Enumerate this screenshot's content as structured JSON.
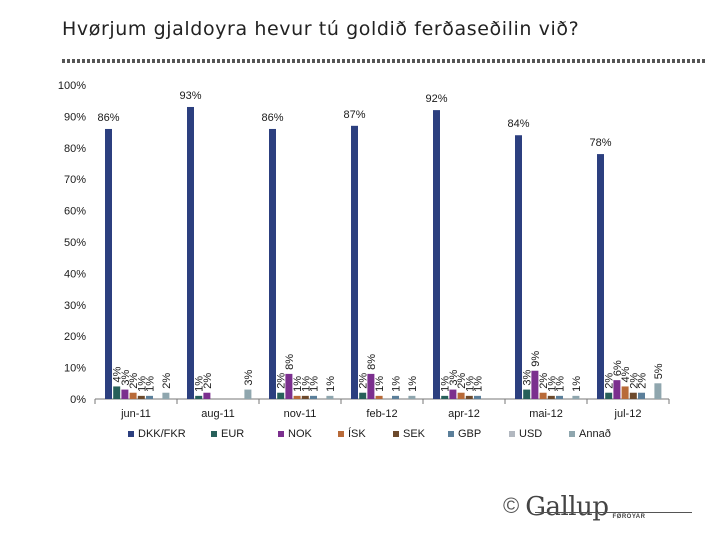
{
  "chart_data": {
    "type": "bar",
    "title": "Hvørjum gjaldoyra hevur tú goldið ferðaseðilin við?",
    "xlabel": "",
    "ylabel": "",
    "ylim": [
      0,
      100
    ],
    "y_ticks": [
      "0%",
      "10%",
      "20%",
      "30%",
      "40%",
      "50%",
      "60%",
      "70%",
      "80%",
      "90%",
      "100%"
    ],
    "categories": [
      "jun-11",
      "aug-11",
      "nov-11",
      "feb-12",
      "apr-12",
      "mai-12",
      "jul-12"
    ],
    "series": [
      {
        "name": "DKK/FKR",
        "color": "#2c3f7f",
        "values": [
          86,
          93,
          86,
          87,
          92,
          84,
          78
        ],
        "labels": [
          "86%",
          "93%",
          "86%",
          "87%",
          "92%",
          "84%",
          "78%"
        ]
      },
      {
        "name": "EUR",
        "color": "#27605a",
        "values": [
          4,
          1,
          2,
          2,
          1,
          3,
          2
        ],
        "labels": [
          "4%",
          "1%",
          "2%",
          "2%",
          "1%",
          "3%",
          "2%"
        ]
      },
      {
        "name": "NOK",
        "color": "#7b2f8e",
        "values": [
          3,
          2,
          8,
          8,
          3,
          9,
          6
        ],
        "labels": [
          "3%",
          "2%",
          "8%",
          "8%",
          "3%",
          "9%",
          "6%"
        ]
      },
      {
        "name": "ÍSK",
        "color": "#b86a38",
        "values": [
          2,
          0,
          1,
          1,
          2,
          2,
          4
        ],
        "labels": [
          "2%",
          "",
          "1%",
          "1%",
          "2%",
          "2%",
          "4%"
        ]
      },
      {
        "name": "SEK",
        "color": "#6d4a2c",
        "values": [
          1,
          0,
          1,
          0,
          1,
          1,
          2
        ],
        "labels": [
          "1%",
          "",
          "1%",
          "",
          "1%",
          "1%",
          "2%"
        ]
      },
      {
        "name": "GBP",
        "color": "#5b7f9a",
        "values": [
          1,
          0,
          1,
          1,
          1,
          1,
          2
        ],
        "labels": [
          "1%",
          "",
          "1%",
          "1%",
          "1%",
          "1%",
          "2%"
        ]
      },
      {
        "name": "USD",
        "color": "#b2b8c0",
        "values": [
          0,
          0,
          0,
          0,
          0,
          0,
          0
        ],
        "labels": [
          "",
          "",
          "",
          "",
          "",
          "",
          ""
        ]
      },
      {
        "name": "Annað",
        "color": "#8fa6ae",
        "values": [
          2,
          3,
          1,
          1,
          0,
          1,
          5
        ],
        "labels": [
          "2%",
          "3%",
          "1%",
          "1%",
          "",
          "1%",
          "5%"
        ]
      }
    ],
    "legend_position": "bottom",
    "grid": false
  },
  "logo": {
    "copyright": "©",
    "wordmark": "Gallup",
    "subtitle": "FØROYAR"
  }
}
